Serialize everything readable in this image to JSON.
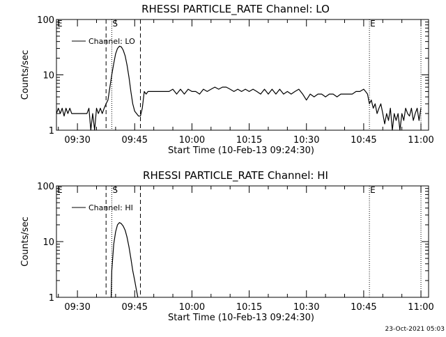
{
  "chart_data": [
    {
      "type": "line",
      "title": "RHESSI PARTICLE_RATE Channel: LO",
      "xlabel": "Start Time (10-Feb-13 09:24:30)",
      "ylabel": "Counts/sec",
      "yscale": "log",
      "xlim": [
        "09:24:30",
        "11:02:00"
      ],
      "ylim": [
        1,
        100
      ],
      "ytick_labels": [
        "1",
        "10",
        "100"
      ],
      "xtick_labels": [
        "09:30",
        "09:45",
        "10:00",
        "10:15",
        "10:30",
        "10:45",
        "11:00"
      ],
      "grid": false,
      "legend": {
        "placement": "top-left",
        "entries": [
          "Channel: LO"
        ]
      },
      "markers": [
        {
          "label": "E",
          "time": "09:24:30",
          "style": "dotted"
        },
        {
          "label": "S",
          "time": "09:39:00",
          "style": "dotted"
        },
        {
          "label": "",
          "time": "09:37:30",
          "style": "dashed"
        },
        {
          "label": "",
          "time": "09:46:30",
          "style": "dashed"
        },
        {
          "label": "E",
          "time": "10:46:30",
          "style": "dotted"
        },
        {
          "label": "",
          "time": "11:00:00",
          "style": "dotted"
        }
      ],
      "series": [
        {
          "x": [
            "09:24:30",
            "09:25:00",
            "09:25:30",
            "09:26:00",
            "09:26:30",
            "09:27:00",
            "09:27:30",
            "09:28:00",
            "09:28:30",
            "09:29:00",
            "09:29:30",
            "09:30:00",
            "09:30:30",
            "09:31:00",
            "09:31:30",
            "09:32:00",
            "09:32:30",
            "09:33:00",
            "09:33:30",
            "09:34:00",
            "09:34:30",
            "09:35:00",
            "09:35:30",
            "09:36:00",
            "09:36:30",
            "09:37:00",
            "09:37:30",
            "09:38:00",
            "09:38:30",
            "09:39:00",
            "09:39:30",
            "09:40:00",
            "09:40:30",
            "09:41:00",
            "09:41:30",
            "09:42:00",
            "09:42:30",
            "09:43:00",
            "09:43:30",
            "09:44:00",
            "09:44:30",
            "09:45:00",
            "09:45:30",
            "09:46:00",
            "09:46:30",
            "09:47:00",
            "09:47:30",
            "09:48:00",
            "09:48:30",
            "09:50:00",
            "09:52:00",
            "09:54:00",
            "09:55:00",
            "09:56:00",
            "09:57:00",
            "09:58:00",
            "09:59:00",
            "10:00:00",
            "10:01:00",
            "10:02:00",
            "10:03:00",
            "10:04:00",
            "10:05:00",
            "10:06:00",
            "10:07:00",
            "10:08:00",
            "10:09:00",
            "10:10:00",
            "10:11:00",
            "10:12:00",
            "10:13:00",
            "10:14:00",
            "10:15:00",
            "10:16:00",
            "10:17:00",
            "10:18:00",
            "10:19:00",
            "10:20:00",
            "10:21:00",
            "10:22:00",
            "10:23:00",
            "10:24:00",
            "10:25:00",
            "10:26:00",
            "10:27:00",
            "10:28:00",
            "10:29:00",
            "10:30:00",
            "10:31:00",
            "10:32:00",
            "10:33:00",
            "10:34:00",
            "10:35:00",
            "10:36:00",
            "10:37:00",
            "10:38:00",
            "10:39:00",
            "10:40:00",
            "10:41:00",
            "10:42:00",
            "10:43:00",
            "10:44:00",
            "10:45:00",
            "10:45:30",
            "10:46:00",
            "10:46:30",
            "10:47:00",
            "10:47:30",
            "10:48:00",
            "10:48:30",
            "10:49:00",
            "10:49:30",
            "10:50:00",
            "10:50:30",
            "10:51:00",
            "10:51:30",
            "10:52:00",
            "10:52:30",
            "10:53:00",
            "10:53:30",
            "10:54:00",
            "10:54:30",
            "10:55:00",
            "10:55:30",
            "10:56:00",
            "10:56:30",
            "10:57:00",
            "10:57:30",
            "10:58:00",
            "10:58:30",
            "10:59:00",
            "10:59:30",
            "11:00:00"
          ],
          "y": [
            2,
            2.5,
            2,
            2.5,
            1.8,
            2.5,
            2,
            2.5,
            2,
            2,
            2,
            2,
            2,
            2,
            2,
            2,
            2,
            2.5,
            1,
            2,
            1,
            2.5,
            2,
            2.5,
            2,
            2.5,
            3,
            3.5,
            6,
            10,
            16,
            24,
            30,
            33,
            32,
            28,
            22,
            15,
            9,
            5,
            3,
            2.2,
            2,
            1.8,
            1.8,
            2.5,
            5,
            4.5,
            5,
            5,
            5,
            5,
            5.5,
            4.5,
            5.5,
            4.5,
            5.5,
            5,
            5,
            4.5,
            5.5,
            5,
            5.5,
            6,
            5.5,
            6,
            6,
            5.5,
            5,
            5.5,
            5,
            5.5,
            5,
            5.5,
            5,
            4.5,
            5.5,
            4.5,
            5.5,
            4.5,
            5.5,
            4.5,
            5,
            4.5,
            5,
            5.5,
            4.5,
            3.5,
            4.5,
            4,
            4.5,
            4.5,
            4,
            4.5,
            4.5,
            4,
            4.5,
            4.5,
            4.5,
            4.5,
            5,
            5,
            5.5,
            5,
            4.5,
            3,
            3.5,
            2.5,
            3,
            2,
            2.5,
            3,
            2,
            1.3,
            2,
            1.5,
            2.5,
            1,
            2,
            1.5,
            2,
            1,
            2,
            1.5,
            2.5,
            2,
            1.8,
            2.5,
            1.5,
            2,
            2.5,
            1.5,
            2.5
          ]
        }
      ]
    },
    {
      "type": "line",
      "title": "RHESSI PARTICLE_RATE Channel: HI",
      "xlabel": "Start Time (10-Feb-13 09:24:30)",
      "ylabel": "Counts/sec",
      "yscale": "log",
      "xlim": [
        "09:24:30",
        "11:02:00"
      ],
      "ylim": [
        1,
        100
      ],
      "ytick_labels": [
        "1",
        "10",
        "100"
      ],
      "xtick_labels": [
        "09:30",
        "09:45",
        "10:00",
        "10:15",
        "10:30",
        "10:45",
        "11:00"
      ],
      "grid": false,
      "legend": {
        "placement": "top-left",
        "entries": [
          "Channel: HI"
        ]
      },
      "markers": [
        {
          "label": "E",
          "time": "09:24:30",
          "style": "dotted"
        },
        {
          "label": "S",
          "time": "09:39:00",
          "style": "dotted"
        },
        {
          "label": "",
          "time": "09:37:30",
          "style": "dashed"
        },
        {
          "label": "",
          "time": "09:46:30",
          "style": "dashed"
        },
        {
          "label": "E",
          "time": "10:46:30",
          "style": "dotted"
        },
        {
          "label": "",
          "time": "11:00:00",
          "style": "dotted"
        }
      ],
      "series": [
        {
          "x": [
            "09:38:50",
            "09:39:00",
            "09:39:30",
            "09:40:00",
            "09:40:30",
            "09:41:00",
            "09:41:30",
            "09:42:00",
            "09:42:30",
            "09:43:00",
            "09:43:30",
            "09:44:00",
            "09:44:30",
            "09:45:00",
            "09:45:30",
            "09:45:50"
          ],
          "y": [
            1,
            3,
            9,
            15,
            20,
            22,
            21,
            19,
            16,
            12,
            8,
            5,
            3,
            2,
            1.3,
            1
          ]
        }
      ]
    }
  ],
  "footer": {
    "timestamp": "23-Oct-2021 05:03"
  }
}
